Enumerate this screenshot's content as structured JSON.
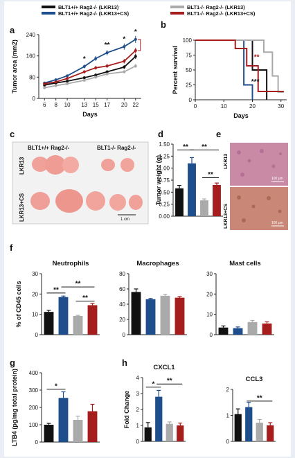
{
  "colors": {
    "black": "#111111",
    "blue": "#1f4e8c",
    "gray": "#aaaaaa",
    "red": "#a51d1d"
  },
  "legend_a": [
    {
      "label": "BLT1+/+ Rag2-/- (LKR13)",
      "color": "#111111"
    },
    {
      "label": "BLT1+/+ Rag2-/- (LKR13+CS)",
      "color": "#1f4e8c"
    }
  ],
  "legend_b": [
    {
      "label": "BLT1-/- Rag2-/- (LKR13)",
      "color": "#aaaaaa"
    },
    {
      "label": "BLT1-/- Rag2-/- (LKR13+CS)",
      "color": "#a51d1d"
    }
  ],
  "panels": {
    "a": "a",
    "b": "b",
    "c": "c",
    "d": "d",
    "e": "e",
    "f": "f",
    "g": "g",
    "h": "h"
  },
  "photo_c": {
    "col1": "BLT1+/+ Rag2-/-",
    "col2": "BLT1-/- Rag2-/-",
    "row1": "LKR13",
    "row2": "LKR13+CS",
    "scale": "1 cm"
  },
  "histo_e": {
    "row1": "LKR13",
    "row2": "LKR13+CS",
    "scale1": "100 µm",
    "scale2": "100 µm"
  },
  "chart_data": [
    {
      "id": "a",
      "type": "line",
      "xlabel": "Days",
      "ylabel": "Tumor area (mm2)",
      "x": [
        6,
        8,
        10,
        13,
        15,
        17,
        20,
        22
      ],
      "ylim": [
        0,
        240
      ],
      "yticks": [
        0,
        80,
        160,
        240
      ],
      "series": [
        {
          "name": "BLT1+/+ Rag2-/- (LKR13)",
          "color": "#111111",
          "values": [
            50,
            58,
            65,
            78,
            88,
            100,
            118,
            158
          ]
        },
        {
          "name": "BLT1+/+ Rag2-/- (LKR13+CS)",
          "color": "#1f4e8c",
          "values": [
            58,
            70,
            85,
            120,
            150,
            172,
            195,
            222
          ]
        },
        {
          "name": "BLT1-/- Rag2-/- (LKR13)",
          "color": "#aaaaaa",
          "values": [
            40,
            48,
            55,
            68,
            80,
            92,
            100,
            122
          ]
        },
        {
          "name": "BLT1-/- Rag2-/- (LKR13+CS)",
          "color": "#a51d1d",
          "values": [
            55,
            62,
            75,
            100,
            115,
            122,
            140,
            180
          ]
        }
      ],
      "annotations": [
        {
          "x": 13,
          "text": "*"
        },
        {
          "x": 17,
          "text": "**"
        },
        {
          "x": 20,
          "text": "*"
        },
        {
          "x": 22,
          "text": "*"
        }
      ]
    },
    {
      "id": "b",
      "type": "line",
      "step": true,
      "xlabel": "Days",
      "ylabel": "Percent survival",
      "xlim": [
        0,
        32
      ],
      "xticks": [
        0,
        10,
        20,
        30
      ],
      "ylim": [
        0,
        100
      ],
      "yticks": [
        0,
        25,
        50,
        75,
        100
      ],
      "series": [
        {
          "name": "BLT1+/+ Rag2-/- (LKR13)",
          "color": "#111111",
          "points": [
            [
              0,
              100
            ],
            [
              20,
              100
            ],
            [
              20,
              50
            ],
            [
              25,
              50
            ],
            [
              25,
              0
            ]
          ]
        },
        {
          "name": "BLT1+/+ Rag2-/- (LKR13+CS)",
          "color": "#1f4e8c",
          "points": [
            [
              0,
              100
            ],
            [
              17,
              100
            ],
            [
              17,
              25
            ],
            [
              20,
              25
            ],
            [
              20,
              0
            ]
          ]
        },
        {
          "name": "BLT1-/- Rag2-/- (LKR13)",
          "color": "#aaaaaa",
          "points": [
            [
              0,
              100
            ],
            [
              18,
              100
            ],
            [
              18,
              100
            ],
            [
              24,
              100
            ],
            [
              24,
              80
            ],
            [
              27,
              80
            ],
            [
              27,
              40
            ],
            [
              29,
              40
            ],
            [
              29,
              13
            ],
            [
              31,
              13
            ]
          ]
        },
        {
          "name": "BLT1-/- Rag2-/- (LKR13+CS)",
          "color": "#a51d1d",
          "points": [
            [
              0,
              100
            ],
            [
              14,
              100
            ],
            [
              14,
              86
            ],
            [
              18,
              86
            ],
            [
              18,
              57
            ],
            [
              22,
              57
            ],
            [
              22,
              14
            ],
            [
              31,
              14
            ]
          ]
        }
      ],
      "annotations": [
        {
          "x": 21.5,
          "y": 68,
          "text": "**",
          "color": "#a51d1d"
        },
        {
          "x": 21,
          "y": 27,
          "text": "***",
          "color": "#111111"
        }
      ]
    },
    {
      "id": "d",
      "type": "bar",
      "ylabel": "Tumor weight (g)",
      "ylim": [
        0,
        1.5
      ],
      "yticks": [
        0.0,
        0.25,
        0.5,
        0.75,
        1.0,
        1.25,
        1.5
      ],
      "yticklabels": [
        "0.00",
        "0.25",
        "0.50",
        "0.75",
        "1.00",
        "1.25",
        "1.50"
      ],
      "values": [
        0.58,
        1.1,
        0.33,
        0.65
      ],
      "errors": [
        0.06,
        0.12,
        0.03,
        0.04
      ],
      "annotations": [
        {
          "from": 0,
          "to": 1,
          "y": 1.38,
          "text": "**"
        },
        {
          "from": 1,
          "to": 3,
          "y": 1.38,
          "text": "**"
        },
        {
          "from": 2,
          "to": 3,
          "y": 0.8,
          "text": "**"
        }
      ]
    },
    {
      "id": "f1",
      "type": "bar",
      "title": "Neutrophils",
      "ylabel": "% of CD45 cells",
      "ylim": [
        0,
        30
      ],
      "yticks": [
        0,
        10,
        20,
        30
      ],
      "values": [
        11.2,
        18.5,
        9.2,
        14.5
      ],
      "errors": [
        0.8,
        0.5,
        0.3,
        0.8
      ],
      "annotations": [
        {
          "from": 0,
          "to": 1,
          "y": 20.5,
          "text": "**"
        },
        {
          "from": 1,
          "to": 3,
          "y": 23.5,
          "text": "**"
        },
        {
          "from": 2,
          "to": 3,
          "y": 16.5,
          "text": "**"
        }
      ]
    },
    {
      "id": "f2",
      "type": "bar",
      "title": "Macrophages",
      "ylim": [
        0,
        80
      ],
      "yticks": [
        0,
        20,
        40,
        60,
        80
      ],
      "values": [
        56,
        46.5,
        51,
        48.5
      ],
      "errors": [
        4,
        1,
        2,
        1.5
      ]
    },
    {
      "id": "f3",
      "type": "bar",
      "title": "Mast cells",
      "ylim": [
        0,
        30
      ],
      "yticks": [
        0,
        10,
        20,
        30
      ],
      "values": [
        3.5,
        3.2,
        6.2,
        5.5
      ],
      "errors": [
        0.8,
        0.6,
        0.8,
        0.8
      ]
    },
    {
      "id": "g",
      "type": "bar",
      "ylabel": "LTB4 (pg/mg total protein)",
      "ylim": [
        0,
        400
      ],
      "yticks": [
        0,
        100,
        200,
        300,
        400
      ],
      "values": [
        100,
        255,
        128,
        178
      ],
      "errors": [
        8,
        35,
        22,
        40
      ],
      "annotations": [
        {
          "from": 0,
          "to": 1,
          "y": 305,
          "text": "*"
        }
      ]
    },
    {
      "id": "h1",
      "type": "bar",
      "title": "CXCL1",
      "ylabel": "Fold Change",
      "ylim": [
        0,
        4
      ],
      "yticks": [
        0,
        1,
        2,
        3,
        4
      ],
      "values": [
        0.88,
        2.8,
        1.1,
        1.0
      ],
      "errors": [
        0.3,
        0.4,
        0.12,
        0.15
      ],
      "annotations": [
        {
          "from": 0,
          "to": 1,
          "y": 3.4,
          "text": "*"
        },
        {
          "from": 1,
          "to": 3,
          "y": 3.6,
          "text": "**"
        }
      ]
    },
    {
      "id": "h2",
      "type": "bar",
      "title": "CCL3",
      "ylim": [
        0,
        2
      ],
      "yticks": [
        0,
        1,
        2
      ],
      "values": [
        1.05,
        1.32,
        0.72,
        0.62
      ],
      "errors": [
        0.2,
        0.18,
        0.12,
        0.1
      ],
      "annotations": [
        {
          "from": 1,
          "to": 3,
          "y": 1.55,
          "text": "**"
        }
      ]
    }
  ]
}
